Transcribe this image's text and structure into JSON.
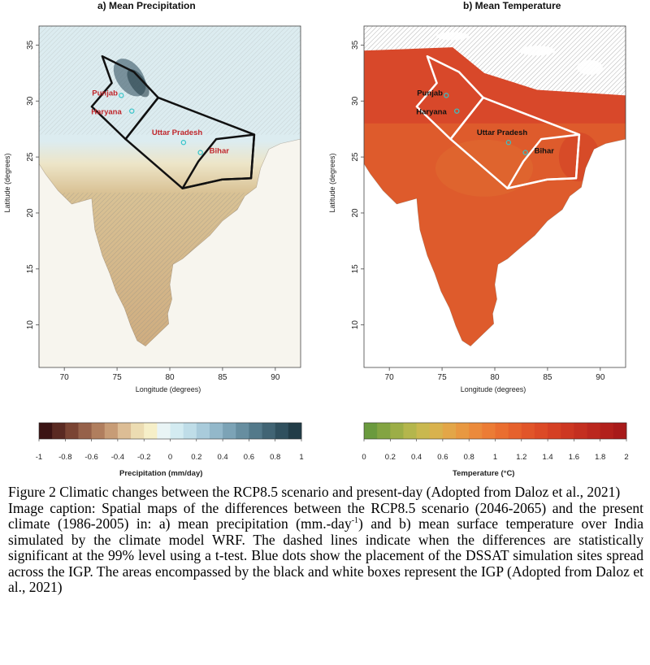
{
  "panels": [
    {
      "title": "a) Mean Precipitation",
      "xlabel": "Longitude (degrees)",
      "ylabel": "Latitude (degrees)",
      "xticks": [
        "70",
        "75",
        "80",
        "85",
        "90"
      ],
      "yticks": [
        "10",
        "15",
        "20",
        "25",
        "30",
        "35"
      ],
      "places": [
        {
          "label": "Punjab",
          "lon": 75.4,
          "lat": 30.5
        },
        {
          "label": "Haryana",
          "lon": 76.4,
          "lat": 29.1
        },
        {
          "label": "Uttar Pradesh",
          "lon": 81.3,
          "lat": 26.3
        },
        {
          "label": "Bihar",
          "lon": 82.9,
          "lat": 25.4
        }
      ],
      "box_color": "#111111",
      "colorbar": {
        "title": "Precipitation (mm/day)",
        "ticks": [
          "-1",
          "-0.8",
          "-0.6",
          "-0.4",
          "-0.2",
          "0",
          "0.2",
          "0.4",
          "0.6",
          "0.8",
          "1"
        ],
        "colors": [
          "#3b1414",
          "#5a2a22",
          "#7a4433",
          "#96614a",
          "#b07e5e",
          "#c79c76",
          "#dcbd95",
          "#ecdcb2",
          "#f6efc8",
          "#e9f4f5",
          "#d3ebf1",
          "#bfdde8",
          "#a9cbdb",
          "#93b8ca",
          "#7ca3b6",
          "#678ea0",
          "#53798a",
          "#416474",
          "#30505e",
          "#223d48"
        ]
      }
    },
    {
      "title": "b) Mean Temperature",
      "xlabel": "Longitude (degrees)",
      "ylabel": "Latitude (degrees)",
      "xticks": [
        "70",
        "75",
        "80",
        "85",
        "90"
      ],
      "yticks": [
        "10",
        "15",
        "20",
        "25",
        "30",
        "35"
      ],
      "places": [
        {
          "label": "Punjab",
          "lon": 75.4,
          "lat": 30.5
        },
        {
          "label": "Haryana",
          "lon": 76.4,
          "lat": 29.1
        },
        {
          "label": "Uttar Pradesh",
          "lon": 81.3,
          "lat": 26.3
        },
        {
          "label": "Bihar",
          "lon": 82.9,
          "lat": 25.4
        }
      ],
      "box_color": "#ffffff",
      "colorbar": {
        "title": "Temperature (°C)",
        "ticks": [
          "0",
          "0.2",
          "0.4",
          "0.6",
          "0.8",
          "1",
          "1.2",
          "1.4",
          "1.6",
          "1.8",
          "2"
        ],
        "colors": [
          "#6a9a3e",
          "#83a442",
          "#9cae47",
          "#b4b64c",
          "#c9b84f",
          "#d9b24d",
          "#e3a648",
          "#e89841",
          "#eb8a3b",
          "#ec7c35",
          "#ea6e30",
          "#e6612c",
          "#e15529",
          "#dc4a26",
          "#d54024",
          "#cd3722",
          "#c42f20",
          "#bb271e",
          "#b2201c",
          "#a81a1a"
        ]
      }
    }
  ],
  "caption": {
    "figure_title": "Figure 2 Climatic changes between the RCP8.5 scenario and present-day (Adopted from Daloz et al., 2021)",
    "text_before_sup": "Image caption: Spatial maps of the differences between the RCP8.5 scenario (2046-2065) and the present climate (1986-2005) in: a) mean precipitation (mm.-day",
    "superscript": "-1",
    "text_after_sup": ") and b) mean surface temperature over India simulated by the climate model WRF. The dashed lines indicate when the differences are statistically significant at the 99% level using a t-test. Blue dots show the placement of the DSSAT simulation sites spread across the IGP. The areas encompassed by the black and white boxes represent the IGP (Adopted from Daloz et al., 2021)"
  },
  "colors": {
    "site_dot": "#35c4c9",
    "place_label_a": "#c0262b",
    "place_label_b": "#111111",
    "sea_a": "#f7f5ee",
    "sea_b": "#ffffff",
    "land_a_south": "#d9c295",
    "land_a_north": "#dcecf0",
    "land_b": "#de5b2c"
  }
}
